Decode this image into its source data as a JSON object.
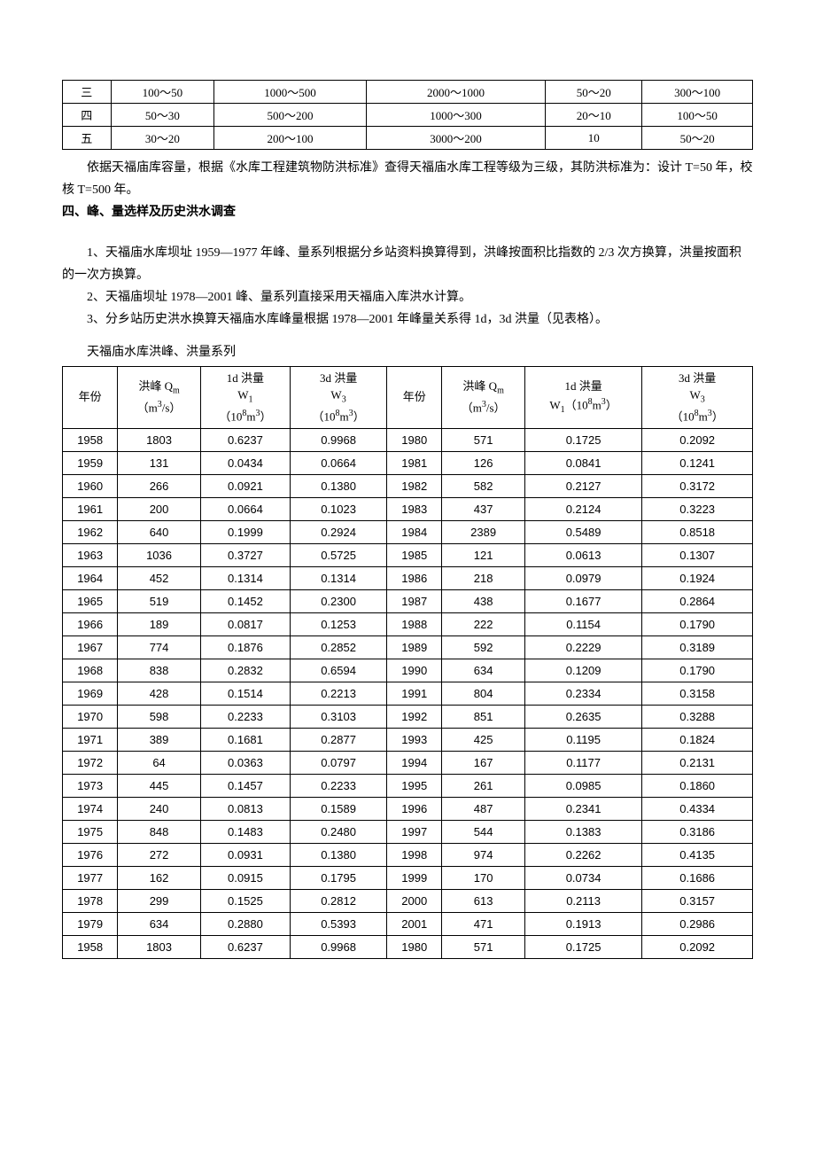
{
  "table1": {
    "rows": [
      [
        "三",
        "100～50",
        "1000～500",
        "2000～1000",
        "50～20",
        "300～100"
      ],
      [
        "四",
        "50～30",
        "500～200",
        "1000～300",
        "20～10",
        "100～50"
      ],
      [
        "五",
        "30～20",
        "200～100",
        "3000～200",
        "10",
        "50～20"
      ]
    ]
  },
  "para1": "依据天福庙库容量，根据《水库工程建筑物防洪标准》查得天福庙水库工程等级为三级，其防洪标准为：设计 T=50 年，校核 T=500 年。",
  "section_title": "四、峰、量选样及历史洪水调查",
  "para2": "1、天福庙水库坝址 1959—1977 年峰、量系列根据分乡站资料换算得到，洪峰按面积比指数的 2/3 次方换算，洪量按面积的一次方换算。",
  "para3": "2、天福庙坝址 1978—2001 峰、量系列直接采用天福庙入库洪水计算。",
  "para4": "3、分乡站历史洪水换算天福庙水库峰量根据 1978—2001 年峰量关系得 1d，3d 洪量（见表格）。",
  "table2_title": "天福庙水库洪峰、洪量系列",
  "table2": {
    "headers": {
      "year": "年份",
      "qm_label": "洪峰 Q",
      "qm_sub": "m",
      "qm_unit": "（m",
      "qm_unit_sup": "3",
      "qm_unit_end": "/s）",
      "w1_label": "1d 洪量",
      "w1_sym": "W",
      "w1_sub": "1",
      "w1_unit_open": "（10",
      "w1_unit_sup": "8",
      "w1_unit_mid": "m",
      "w1_unit_sup2": "3",
      "w1_unit_close": "）",
      "w3_label": "3d 洪量",
      "w3_sym": "W",
      "w3_sub": "3",
      "w1_inline": "1d 洪量"
    },
    "rows": [
      [
        "1958",
        "1803",
        "0.6237",
        "0.9968",
        "1980",
        "571",
        "0.1725",
        "0.2092"
      ],
      [
        "1959",
        "131",
        "0.0434",
        "0.0664",
        "1981",
        "126",
        "0.0841",
        "0.1241"
      ],
      [
        "1960",
        "266",
        "0.0921",
        "0.1380",
        "1982",
        "582",
        "0.2127",
        "0.3172"
      ],
      [
        "1961",
        "200",
        "0.0664",
        "0.1023",
        "1983",
        "437",
        "0.2124",
        "0.3223"
      ],
      [
        "1962",
        "640",
        "0.1999",
        "0.2924",
        "1984",
        "2389",
        "0.5489",
        "0.8518"
      ],
      [
        "1963",
        "1036",
        "0.3727",
        "0.5725",
        "1985",
        "121",
        "0.0613",
        "0.1307"
      ],
      [
        "1964",
        "452",
        "0.1314",
        "0.1314",
        "1986",
        "218",
        "0.0979",
        "0.1924"
      ],
      [
        "1965",
        "519",
        "0.1452",
        "0.2300",
        "1987",
        "438",
        "0.1677",
        "0.2864"
      ],
      [
        "1966",
        "189",
        "0.0817",
        "0.1253",
        "1988",
        "222",
        "0.1154",
        "0.1790"
      ],
      [
        "1967",
        "774",
        "0.1876",
        "0.2852",
        "1989",
        "592",
        "0.2229",
        "0.3189"
      ],
      [
        "1968",
        "838",
        "0.2832",
        "0.6594",
        "1990",
        "634",
        "0.1209",
        "0.1790"
      ],
      [
        "1969",
        "428",
        "0.1514",
        "0.2213",
        "1991",
        "804",
        "0.2334",
        "0.3158"
      ],
      [
        "1970",
        "598",
        "0.2233",
        "0.3103",
        "1992",
        "851",
        "0.2635",
        "0.3288"
      ],
      [
        "1971",
        "389",
        "0.1681",
        "0.2877",
        "1993",
        "425",
        "0.1195",
        "0.1824"
      ],
      [
        "1972",
        "64",
        "0.0363",
        "0.0797",
        "1994",
        "167",
        "0.1177",
        "0.2131"
      ],
      [
        "1973",
        "445",
        "0.1457",
        "0.2233",
        "1995",
        "261",
        "0.0985",
        "0.1860"
      ],
      [
        "1974",
        "240",
        "0.0813",
        "0.1589",
        "1996",
        "487",
        "0.2341",
        "0.4334"
      ],
      [
        "1975",
        "848",
        "0.1483",
        "0.2480",
        "1997",
        "544",
        "0.1383",
        "0.3186"
      ],
      [
        "1976",
        "272",
        "0.0931",
        "0.1380",
        "1998",
        "974",
        "0.2262",
        "0.4135"
      ],
      [
        "1977",
        "162",
        "0.0915",
        "0.1795",
        "1999",
        "170",
        "0.0734",
        "0.1686"
      ],
      [
        "1978",
        "299",
        "0.1525",
        "0.2812",
        "2000",
        "613",
        "0.2113",
        "0.3157"
      ],
      [
        "1979",
        "634",
        "0.2880",
        "0.5393",
        "2001",
        "471",
        "0.1913",
        "0.2986"
      ],
      [
        "1958",
        "1803",
        "0.6237",
        "0.9968",
        "1980",
        "571",
        "0.1725",
        "0.2092"
      ]
    ]
  }
}
